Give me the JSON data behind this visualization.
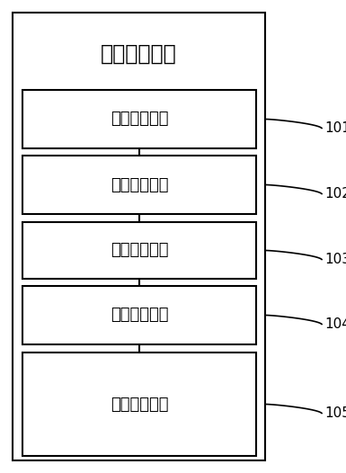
{
  "title": "参数配置模块",
  "boxes": [
    {
      "label": "点位获取单元",
      "id": "101"
    },
    {
      "label": "直连分配单元",
      "id": "102"
    },
    {
      "label": "转发分配单元",
      "id": "103"
    },
    {
      "label": "波段分配单元",
      "id": "104"
    },
    {
      "label": "配置生成单元",
      "id": "105"
    }
  ],
  "outer_box_color": "#ffffff",
  "outer_box_edge": "#000000",
  "inner_box_color": "#ffffff",
  "inner_box_edge": "#000000",
  "text_color": "#000000",
  "line_color": "#000000",
  "title_fontsize": 17,
  "label_fontsize": 13,
  "ref_fontsize": 11,
  "fig_width": 3.85,
  "fig_height": 5.26,
  "dpi": 100
}
